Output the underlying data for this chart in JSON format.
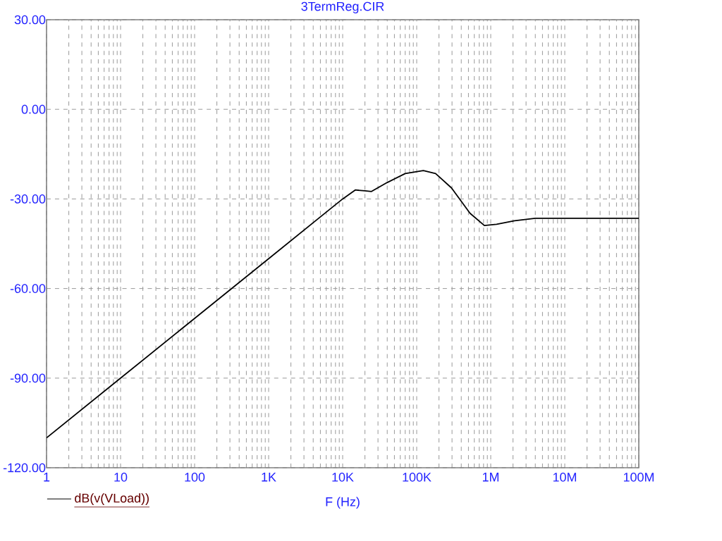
{
  "chart_data": {
    "type": "line",
    "title": "3TermReg.CIR",
    "xlabel": "F (Hz)",
    "legend": "bottom left",
    "log": "x",
    "grid": true,
    "line_style": "solid",
    "marker": "none",
    "xlim": [
      1,
      100000000
    ],
    "ylim": [
      -120,
      30
    ],
    "xticks": [
      {
        "value": 1,
        "label": "1"
      },
      {
        "value": 10,
        "label": "10"
      },
      {
        "value": 100,
        "label": "100"
      },
      {
        "value": 1000,
        "label": "1K"
      },
      {
        "value": 10000,
        "label": "10K"
      },
      {
        "value": 100000,
        "label": "100K"
      },
      {
        "value": 1000000,
        "label": "1M"
      },
      {
        "value": 10000000,
        "label": "10M"
      },
      {
        "value": 100000000,
        "label": "100M"
      }
    ],
    "yticks": [
      {
        "value": 30,
        "label": "30.00"
      },
      {
        "value": 0,
        "label": "0.00"
      },
      {
        "value": -30,
        "label": "-30.00"
      },
      {
        "value": -60,
        "label": "-60.00"
      },
      {
        "value": -90,
        "label": "-90.00"
      },
      {
        "value": -120,
        "label": "-120.00"
      }
    ],
    "series": [
      {
        "name": "dB(v(VLoad))",
        "color": "#000000",
        "x": [
          1,
          10,
          100,
          1000,
          5000,
          10000,
          14800,
          20000,
          24500,
          40000,
          70000,
          123000,
          180000,
          295000,
          525000,
          820000,
          1200000,
          2100000,
          4000000,
          10000000,
          100000000
        ],
        "values": [
          -110,
          -90,
          -70,
          -50,
          -36,
          -30,
          -27,
          -27.3,
          -27.5,
          -24.5,
          -21.5,
          -20.5,
          -21.5,
          -26.3,
          -34.8,
          -38.9,
          -38.5,
          -37.3,
          -36.5,
          -36.5,
          -36.5
        ]
      }
    ]
  }
}
